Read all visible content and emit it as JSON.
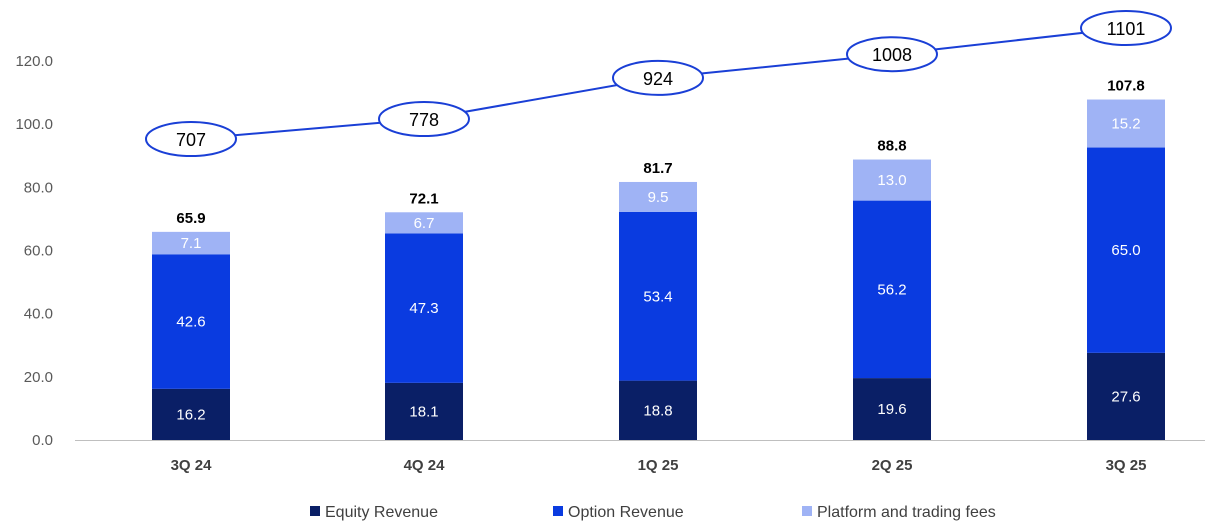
{
  "chart_data": {
    "type": "bar",
    "stacked": true,
    "categories": [
      "3Q 24",
      "4Q 24",
      "1Q 25",
      "2Q 25",
      "3Q 25"
    ],
    "series": [
      {
        "name": "Equity Revenue",
        "values": [
          16.2,
          18.1,
          18.8,
          19.6,
          27.6
        ],
        "color": "#0a1f66"
      },
      {
        "name": "Option Revenue",
        "values": [
          42.6,
          47.3,
          53.4,
          56.2,
          65.0
        ],
        "color": "#0a3be0"
      },
      {
        "name": "Platform and trading fees",
        "values": [
          7.1,
          6.7,
          9.5,
          13.0,
          15.2
        ],
        "color": "#9fb3f5"
      }
    ],
    "segment_label_colors": [
      "#ffffff",
      "#ffffff",
      "#ffffff"
    ],
    "totals": [
      "65.9",
      "72.1",
      "81.7",
      "88.8",
      "107.8"
    ],
    "line_series": {
      "labels": [
        "707",
        "778",
        "924",
        "1008",
        "1101"
      ],
      "values": [
        707,
        778,
        924,
        1008,
        1101
      ],
      "color": "#1a3fd6"
    },
    "y_ticks": [
      "0.0",
      "20.0",
      "40.0",
      "60.0",
      "80.0",
      "100.0",
      "120.0"
    ],
    "ylim": [
      0,
      125
    ],
    "legend_position": "bottom",
    "grid": false
  }
}
